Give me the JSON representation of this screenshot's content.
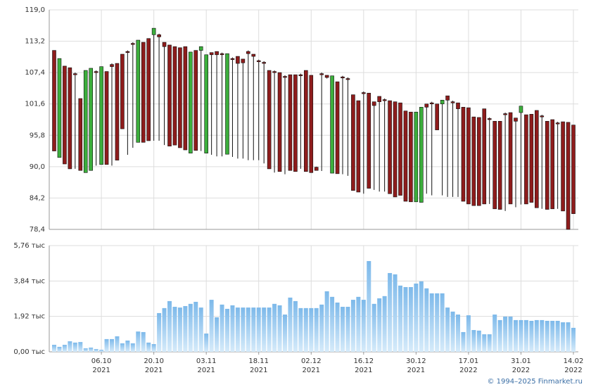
{
  "chart_data": [
    {
      "type": "candlestick",
      "up_color": "#3cae3c",
      "down_color": "#8e1c1c",
      "ylim": [
        78.4,
        119.0
      ],
      "yticks": [
        {
          "value": 78.4,
          "label": "78,4"
        },
        {
          "value": 84.2,
          "label": "84,2"
        },
        {
          "value": 90.0,
          "label": "90,0"
        },
        {
          "value": 95.8,
          "label": "95,8"
        },
        {
          "value": 101.6,
          "label": "101,6"
        },
        {
          "value": 107.4,
          "label": "107,4"
        },
        {
          "value": 113.2,
          "label": "113,2"
        },
        {
          "value": 119.0,
          "label": "119,0"
        }
      ],
      "grid": true,
      "open": [
        111.5,
        91.7,
        108.6,
        108.3,
        107.2,
        102.6,
        88.9,
        89.3,
        107.6,
        90.4,
        107.6,
        108.9,
        109.1,
        110.8,
        111.3,
        112.8,
        94.5,
        113.0,
        113.7,
        114.4,
        114.4,
        113.0,
        112.5,
        112.2,
        112.0,
        112.2,
        92.5,
        111.5,
        111.5,
        92.5,
        111.1,
        111.3,
        110.9,
        92.3,
        110.0,
        110.4,
        109.9,
        111.3,
        110.8,
        109.6,
        109.3,
        107.8,
        107.6,
        107.4,
        106.7,
        107.0,
        107.0,
        107.0,
        107.8,
        106.9,
        89.9,
        107.2,
        106.9,
        88.8,
        105.7,
        106.6,
        106.3,
        103.3,
        102.2,
        103.7,
        103.6,
        102.0,
        103.0,
        102.4,
        102.2,
        102.0,
        101.8,
        100.3,
        100.1,
        83.5,
        83.4,
        101.6,
        101.8,
        101.6,
        101.6,
        103.1,
        102.0,
        101.8,
        101.0,
        100.9,
        99.2,
        99.1,
        100.7,
        98.9,
        98.4,
        98.4,
        99.8,
        100.0,
        99.0,
        100.0,
        99.6,
        99.7,
        100.4,
        99.4,
        98.4,
        98.7,
        98.1,
        98.3,
        98.2,
        97.7
      ],
      "high": [
        111.5,
        110.0,
        108.6,
        108.3,
        107.4,
        102.6,
        107.8,
        108.2,
        107.8,
        108.5,
        107.6,
        109.1,
        109.1,
        110.8,
        111.5,
        113.0,
        113.4,
        113.0,
        113.7,
        115.6,
        114.6,
        113.0,
        112.5,
        112.2,
        112.0,
        112.2,
        111.2,
        111.5,
        112.2,
        110.7,
        111.1,
        111.3,
        111.1,
        110.9,
        110.2,
        110.4,
        109.9,
        111.5,
        110.8,
        109.8,
        109.5,
        107.8,
        107.8,
        107.4,
        106.9,
        107.0,
        107.0,
        107.2,
        107.8,
        106.9,
        90.0,
        107.4,
        106.9,
        106.8,
        105.7,
        106.8,
        106.5,
        103.3,
        102.2,
        103.9,
        103.6,
        102.0,
        103.0,
        102.6,
        102.2,
        102.0,
        101.8,
        100.3,
        100.1,
        100.1,
        101.0,
        101.6,
        102.0,
        101.6,
        102.3,
        103.1,
        102.2,
        101.8,
        101.0,
        100.9,
        99.2,
        99.1,
        100.7,
        99.1,
        98.4,
        98.4,
        100.0,
        100.0,
        99.0,
        101.2,
        99.6,
        99.7,
        100.4,
        99.6,
        98.4,
        98.7,
        98.3,
        98.3,
        98.2,
        97.7
      ],
      "low": [
        92.9,
        91.7,
        90.5,
        89.6,
        89.6,
        89.3,
        88.9,
        89.3,
        90.2,
        90.4,
        90.4,
        90.2,
        91.2,
        97.0,
        92.2,
        93.5,
        94.5,
        94.5,
        94.8,
        94.8,
        94.8,
        94.0,
        93.8,
        94.0,
        93.5,
        93.1,
        92.5,
        93.0,
        92.9,
        92.5,
        92.2,
        91.9,
        91.9,
        92.3,
        91.8,
        91.5,
        91.5,
        91.2,
        91.2,
        91.2,
        90.6,
        89.6,
        88.9,
        89.1,
        88.6,
        89.3,
        89.1,
        89.6,
        89.1,
        88.9,
        89.3,
        89.2,
        106.3,
        88.8,
        88.7,
        88.6,
        88.3,
        85.6,
        85.3,
        85.0,
        86.0,
        85.7,
        85.4,
        85.4,
        85.0,
        84.4,
        84.7,
        83.6,
        83.5,
        83.5,
        83.4,
        85.0,
        84.7,
        96.8,
        84.7,
        84.4,
        84.4,
        84.4,
        83.6,
        83.1,
        82.8,
        82.8,
        83.1,
        83.1,
        82.2,
        82.1,
        81.8,
        83.1,
        82.5,
        83.0,
        83.1,
        83.4,
        82.4,
        82.2,
        82.1,
        82.2,
        82.2,
        81.8,
        78.4,
        81.3
      ],
      "close": [
        92.9,
        110.0,
        90.5,
        89.6,
        107.0,
        89.3,
        107.8,
        108.2,
        107.4,
        108.5,
        90.4,
        108.5,
        91.2,
        97.0,
        111.1,
        112.6,
        113.4,
        94.5,
        94.8,
        115.6,
        114.0,
        112.2,
        93.8,
        94.0,
        93.5,
        93.1,
        111.2,
        93.0,
        112.2,
        110.7,
        110.7,
        110.7,
        110.7,
        110.9,
        109.8,
        109.1,
        109.2,
        110.9,
        110.4,
        109.4,
        109.1,
        89.6,
        107.4,
        89.1,
        106.5,
        89.3,
        89.1,
        106.8,
        89.1,
        88.9,
        89.3,
        107.0,
        106.5,
        106.8,
        88.7,
        106.4,
        106.1,
        85.6,
        85.3,
        103.5,
        86.0,
        101.3,
        102.0,
        102.2,
        85.0,
        84.4,
        84.7,
        83.6,
        83.5,
        100.1,
        101.0,
        101.0,
        101.6,
        96.8,
        102.3,
        102.3,
        101.8,
        100.7,
        83.6,
        83.1,
        82.8,
        82.8,
        83.1,
        98.7,
        82.2,
        82.1,
        99.6,
        83.1,
        98.4,
        101.2,
        83.1,
        83.4,
        82.4,
        99.2,
        82.1,
        82.2,
        97.9,
        81.8,
        78.4,
        81.3
      ]
    },
    {
      "type": "bar",
      "color": "#7db9ea",
      "ylim": [
        0,
        5.76
      ],
      "yticks": [
        {
          "value": 0,
          "label": "0,00 тыс"
        },
        {
          "value": 1.92,
          "label": "1,92 тыс"
        },
        {
          "value": 3.84,
          "label": "3,84 тыс"
        },
        {
          "value": 5.76,
          "label": "5,76 тыс"
        }
      ],
      "grid": true,
      "categories": [
        null,
        null,
        null,
        null,
        null,
        null,
        null,
        null,
        null,
        "06.10",
        null,
        null,
        null,
        null,
        null,
        null,
        null,
        null,
        null,
        "20.10",
        null,
        null,
        null,
        null,
        null,
        null,
        null,
        null,
        null,
        "03.11",
        null,
        null,
        null,
        null,
        null,
        null,
        null,
        null,
        null,
        "18.11",
        null,
        null,
        null,
        null,
        null,
        null,
        null,
        null,
        null,
        "02.12",
        null,
        null,
        null,
        null,
        null,
        null,
        null,
        null,
        null,
        "16.12",
        null,
        null,
        null,
        null,
        null,
        null,
        null,
        null,
        null,
        "30.12",
        null,
        null,
        null,
        null,
        null,
        null,
        null,
        null,
        null,
        "17.01",
        null,
        null,
        null,
        null,
        null,
        null,
        null,
        null,
        null,
        "31.01",
        null,
        null,
        null,
        null,
        null,
        null,
        null,
        null,
        null,
        "14.02"
      ],
      "category_years": [
        null,
        null,
        null,
        null,
        null,
        null,
        null,
        null,
        null,
        "2021",
        null,
        null,
        null,
        null,
        null,
        null,
        null,
        null,
        null,
        "2021",
        null,
        null,
        null,
        null,
        null,
        null,
        null,
        null,
        null,
        "2021",
        null,
        null,
        null,
        null,
        null,
        null,
        null,
        null,
        null,
        "2021",
        null,
        null,
        null,
        null,
        null,
        null,
        null,
        null,
        null,
        "2021",
        null,
        null,
        null,
        null,
        null,
        null,
        null,
        null,
        null,
        "2021",
        null,
        null,
        null,
        null,
        null,
        null,
        null,
        null,
        null,
        "2021",
        null,
        null,
        null,
        null,
        null,
        null,
        null,
        null,
        null,
        "2022",
        null,
        null,
        null,
        null,
        null,
        null,
        null,
        null,
        null,
        "2022",
        null,
        null,
        null,
        null,
        null,
        null,
        null,
        null,
        null,
        "2022"
      ],
      "values": [
        0.38,
        0.27,
        0.38,
        0.57,
        0.5,
        0.53,
        0.19,
        0.23,
        0.15,
        0.11,
        0.69,
        0.69,
        0.84,
        0.46,
        0.61,
        0.46,
        1.1,
        1.07,
        0.5,
        0.42,
        2.1,
        2.37,
        2.75,
        2.44,
        2.4,
        2.48,
        2.6,
        2.71,
        2.4,
        0.99,
        2.82,
        1.87,
        2.56,
        2.33,
        2.52,
        2.4,
        2.4,
        2.4,
        2.4,
        2.4,
        2.4,
        2.4,
        2.6,
        2.52,
        2.02,
        2.94,
        2.75,
        2.37,
        2.37,
        2.37,
        2.37,
        2.56,
        3.28,
        2.98,
        2.67,
        2.44,
        2.44,
        2.82,
        2.98,
        2.82,
        4.92,
        2.6,
        2.9,
        3.02,
        4.27,
        4.2,
        3.59,
        3.51,
        3.51,
        3.7,
        3.82,
        3.44,
        3.17,
        3.17,
        3.17,
        2.4,
        2.18,
        2.02,
        1.07,
        1.98,
        1.18,
        1.15,
        0.95,
        0.95,
        2.02,
        1.72,
        1.91,
        1.91,
        1.72,
        1.72,
        1.72,
        1.68,
        1.72,
        1.72,
        1.68,
        1.68,
        1.68,
        1.6,
        1.6,
        1.3
      ]
    }
  ],
  "footer": "© 1994–2025 Finmarket.ru"
}
